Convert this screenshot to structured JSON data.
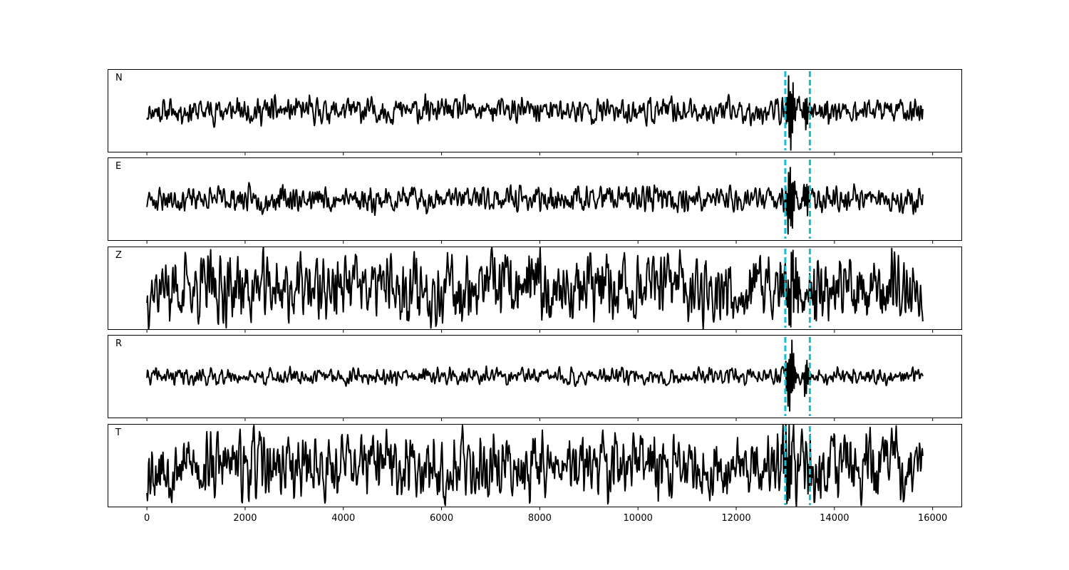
{
  "chart_data": {
    "type": "line",
    "x_range": [
      0,
      15800
    ],
    "xlim": [
      -800,
      16600
    ],
    "x_ticks": [
      0,
      2000,
      4000,
      6000,
      8000,
      10000,
      12000,
      14000,
      16000
    ],
    "x_tick_labels": [
      "0",
      "2000",
      "4000",
      "6000",
      "8000",
      "10000",
      "12000",
      "14000",
      "16000"
    ],
    "vertical_markers": [
      13000,
      13500
    ],
    "colors": {
      "trace": "#000000",
      "marker": "#17becf",
      "axes": "#000000"
    },
    "panels": [
      {
        "label": "N",
        "ylim": [
          -1.15,
          1.15
        ],
        "noise_amp": 0.22,
        "event_amp": 1.0,
        "event_span": [
          13000,
          13500
        ],
        "seed": 11
      },
      {
        "label": "E",
        "ylim": [
          -1.15,
          1.15
        ],
        "noise_amp": 0.22,
        "event_amp": 0.95,
        "event_span": [
          13000,
          13500
        ],
        "seed": 23
      },
      {
        "label": "Z",
        "ylim": [
          -1.15,
          1.15
        ],
        "noise_amp": 0.6,
        "event_amp": 0.85,
        "event_span": [
          13000,
          13700
        ],
        "seed": 37
      },
      {
        "label": "R",
        "ylim": [
          -1.15,
          1.15
        ],
        "noise_amp": 0.14,
        "event_amp": 0.95,
        "event_span": [
          13000,
          13500
        ],
        "seed": 41
      },
      {
        "label": "T",
        "ylim": [
          -1.15,
          1.15
        ],
        "noise_amp": 0.6,
        "event_amp": 1.0,
        "event_span": [
          12900,
          13600
        ],
        "seed": 53
      }
    ]
  }
}
